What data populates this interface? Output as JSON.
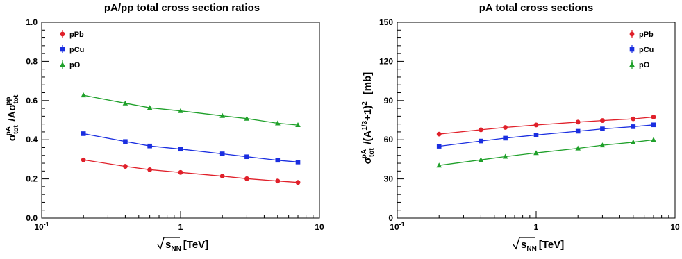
{
  "chart_data": [
    {
      "type": "line",
      "title": "pA/pp total cross section ratios",
      "xlabel": "√s_NN [TeV]",
      "ylabel": "σ_tot^pA / A σ_tot^pp",
      "x_scale": "log",
      "xlim": [
        0.1,
        10
      ],
      "ylim": [
        0.0,
        1.0
      ],
      "x_tick_labels": [
        "10-1",
        "1",
        "10"
      ],
      "y_tick_labels": [
        "0.0",
        "0.2",
        "0.4",
        "0.6",
        "0.8",
        "1.0"
      ],
      "legend_position": "top-left",
      "x": [
        0.2,
        0.4,
        0.6,
        1.0,
        2.0,
        3.0,
        5.0,
        7.0
      ],
      "series": [
        {
          "name": "pPb",
          "color": "#e0202a",
          "marker": "circle",
          "values": [
            0.297,
            0.264,
            0.247,
            0.233,
            0.214,
            0.201,
            0.189,
            0.182
          ]
        },
        {
          "name": "pCu",
          "color": "#1a2ee0",
          "marker": "square",
          "values": [
            0.431,
            0.391,
            0.368,
            0.352,
            0.328,
            0.313,
            0.295,
            0.286
          ]
        },
        {
          "name": "pO",
          "color": "#1fa02a",
          "marker": "triangle",
          "values": [
            0.627,
            0.586,
            0.563,
            0.547,
            0.522,
            0.508,
            0.484,
            0.475
          ]
        }
      ]
    },
    {
      "type": "line",
      "title": "pA total cross sections",
      "xlabel": "√s_NN [TeV]",
      "ylabel": "σ_tot^pA /(A^1/3+1)^2   [mb]",
      "x_scale": "log",
      "xlim": [
        0.1,
        10
      ],
      "ylim": [
        0,
        150
      ],
      "x_tick_labels": [
        "10-1",
        "1",
        "10"
      ],
      "y_tick_labels": [
        "0",
        "30",
        "60",
        "90",
        "120",
        "150"
      ],
      "legend_position": "top-right",
      "x": [
        0.2,
        0.4,
        0.6,
        1.0,
        2.0,
        3.0,
        5.0,
        7.0
      ],
      "series": [
        {
          "name": "pPb",
          "color": "#e0202a",
          "marker": "circle",
          "values": [
            64.3,
            67.6,
            69.4,
            71.3,
            73.5,
            74.7,
            76.0,
            77.4
          ]
        },
        {
          "name": "pCu",
          "color": "#1a2ee0",
          "marker": "square",
          "values": [
            55.0,
            59.0,
            61.2,
            63.6,
            66.5,
            68.3,
            70.0,
            71.4
          ]
        },
        {
          "name": "pO",
          "color": "#1fa02a",
          "marker": "triangle",
          "values": [
            40.3,
            44.6,
            47.1,
            49.9,
            53.4,
            55.8,
            58.1,
            59.9
          ]
        }
      ]
    }
  ]
}
